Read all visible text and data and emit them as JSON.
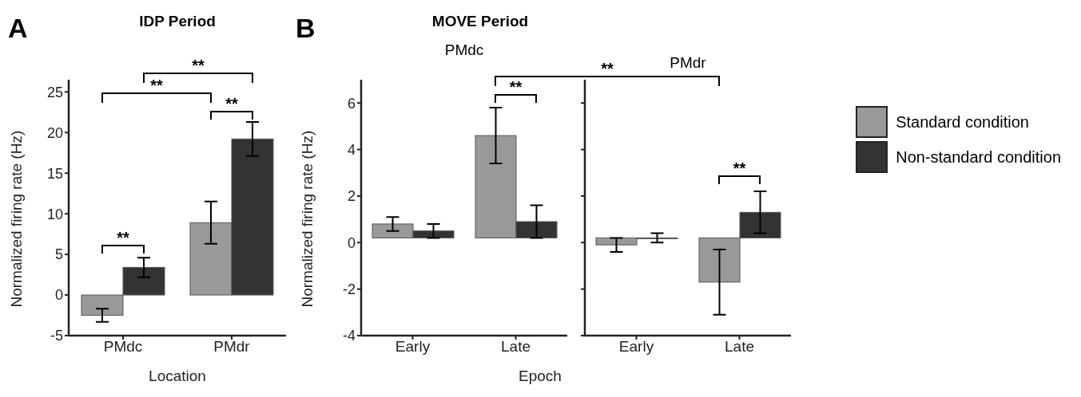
{
  "chart_data": [
    {
      "type": "bar",
      "title": "IDP Period",
      "xlabel": "Location",
      "ylabel": "Normalized firing rate (Hz)",
      "categories": [
        "PMdc",
        "PMdr"
      ],
      "series": [
        {
          "color": "#999999",
          "values": [
            -2.5,
            8.9
          ],
          "errors": [
            0.8,
            2.6
          ]
        },
        {
          "color": "#333333",
          "values": [
            3.4,
            19.2
          ],
          "errors": [
            1.2,
            2.1
          ]
        }
      ],
      "ylim": [
        -5,
        26.5
      ],
      "yticks": [
        -5,
        0,
        5,
        10,
        15,
        20,
        25
      ],
      "annotations": [
        "A",
        "**",
        "**",
        "**",
        "**"
      ]
    },
    {
      "type": "bar",
      "title": "MOVE Period",
      "subtitle": "PMdc",
      "xlabel": "Epoch",
      "ylabel": "Normalized firing rate (Hz)",
      "categories": [
        "Early",
        "Late"
      ],
      "series": [
        {
          "color": "#999999",
          "values": [
            0.6,
            4.4
          ],
          "base": [
            0.2,
            0.2
          ],
          "errors": [
            0.3,
            1.2
          ]
        },
        {
          "color": "#333333",
          "values": [
            0.3,
            0.7
          ],
          "base": [
            0.2,
            0.2
          ],
          "errors": [
            0.3,
            0.7
          ]
        }
      ],
      "ylim": [
        -4,
        7
      ],
      "yticks": [
        -4,
        -2,
        0,
        2,
        4,
        6
      ],
      "annotations": [
        "B",
        "**",
        "**"
      ]
    },
    {
      "type": "bar",
      "subtitle": "PMdr",
      "categories": [
        "Early",
        "Late"
      ],
      "series": [
        {
          "name": "Standard condition",
          "color": "#999999",
          "values": [
            -0.3,
            -1.9
          ],
          "base": [
            0.2,
            0.2
          ],
          "errors": [
            0.3,
            1.4
          ]
        },
        {
          "name": "Non-standard condition",
          "color": "#333333",
          "values": [
            0,
            1.1
          ],
          "base": [
            0.2,
            0.2
          ],
          "errors": [
            0.2,
            0.9
          ]
        }
      ],
      "ylim": [
        -4,
        7
      ],
      "yticks": [
        {
          "value": -4,
          "label": null
        },
        {
          "value": -2,
          "label": null
        },
        {
          "value": 0,
          "label": null
        },
        {
          "value": 2,
          "label": null
        },
        {
          "value": 4,
          "label": null
        },
        {
          "value": 6,
          "label": null
        }
      ],
      "tick_labels": "x",
      "legend": "right",
      "annotations": [
        "**"
      ]
    }
  ]
}
